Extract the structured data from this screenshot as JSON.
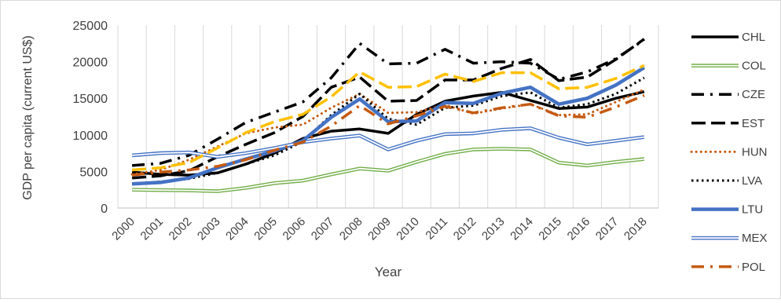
{
  "chart_data": {
    "type": "line",
    "title": "",
    "xlabel": "Year",
    "ylabel": "GDP per capita (current US$)",
    "ylim": [
      0,
      25000
    ],
    "yticks": [
      "0",
      "5000",
      "10000",
      "15000",
      "20000",
      "25000"
    ],
    "grid": "vertical gridlines on, horizontal gridlines off",
    "legend_position": "right",
    "x": [
      "2000",
      "2001",
      "2002",
      "2003",
      "2004",
      "2005",
      "2006",
      "2007",
      "2008",
      "2009",
      "2010",
      "2011",
      "2012",
      "2013",
      "2014",
      "2015",
      "2016",
      "2017",
      "2018"
    ],
    "series": [
      {
        "name": "CHL",
        "color": "#000000",
        "style": "solid-thick",
        "values": [
          4900,
          4600,
          4500,
          4800,
          6000,
          7500,
          9500,
          10500,
          10800,
          10200,
          12800,
          14600,
          15300,
          15800,
          14700,
          13600,
          13800,
          15000,
          15900
        ]
      },
      {
        "name": "COL",
        "color": "#70ad47",
        "style": "double-thin",
        "values": [
          2500,
          2450,
          2400,
          2300,
          2750,
          3400,
          3750,
          4600,
          5400,
          5100,
          6300,
          7400,
          8000,
          8100,
          8000,
          6200,
          5800,
          6300,
          6700
        ]
      },
      {
        "name": "CZE",
        "color": "#000000",
        "style": "dash-dot",
        "values": [
          5800,
          6100,
          7200,
          9400,
          11700,
          13100,
          14500,
          17800,
          22500,
          19700,
          19800,
          21700,
          19800,
          20000,
          19800,
          17600,
          18600,
          20400,
          23000
        ]
      },
      {
        "name": "EST",
        "color": "#000000",
        "style": "long-dash",
        "values": [
          4100,
          4400,
          5100,
          7000,
          8700,
          10300,
          12500,
          16500,
          17900,
          14600,
          14700,
          17500,
          17500,
          19100,
          20300,
          17400,
          17900,
          20300,
          23100
        ]
      },
      {
        "name": "HUN",
        "color": "#c55a11",
        "style": "round-dot",
        "values": [
          4600,
          5200,
          6600,
          8400,
          10200,
          11000,
          11400,
          13700,
          15600,
          13000,
          13100,
          14100,
          12900,
          13600,
          14200,
          12700,
          12800,
          14500,
          16200
        ]
      },
      {
        "name": "LVA",
        "color": "#000000",
        "style": "dot",
        "values": [
          3300,
          3600,
          4000,
          4800,
          6000,
          7200,
          9100,
          12700,
          15600,
          12200,
          11400,
          13700,
          14000,
          15300,
          15800,
          13700,
          14200,
          15600,
          17800
        ]
      },
      {
        "name": "LTU",
        "color": "#4472c4",
        "style": "solid-thick",
        "values": [
          3300,
          3500,
          4100,
          5500,
          6700,
          7800,
          9200,
          12400,
          14900,
          11800,
          11900,
          14400,
          14300,
          15700,
          16500,
          14200,
          15000,
          16800,
          19200
        ]
      },
      {
        "name": "MEX",
        "color": "#4472c4",
        "style": "double-thin",
        "values": [
          7200,
          7500,
          7600,
          7000,
          7500,
          8200,
          9000,
          9500,
          9900,
          8000,
          9200,
          10100,
          10200,
          10700,
          10900,
          9600,
          8700,
          9200,
          9700
        ]
      },
      {
        "name": "POL",
        "color": "#c55a11",
        "style": "dash-dot",
        "values": [
          4500,
          4900,
          5200,
          5700,
          6600,
          7900,
          9000,
          11200,
          14000,
          11500,
          12600,
          13900,
          13000,
          13700,
          14200,
          12600,
          12400,
          13800,
          15400
        ]
      },
      {
        "name": "",
        "color": "#ffc000",
        "style": "long-dash",
        "values": [
          5200,
          5500,
          6200,
          8200,
          10300,
          11800,
          12800,
          15200,
          18600,
          16500,
          16600,
          18300,
          17300,
          18500,
          18500,
          16300,
          16500,
          17700,
          19500
        ]
      }
    ]
  }
}
